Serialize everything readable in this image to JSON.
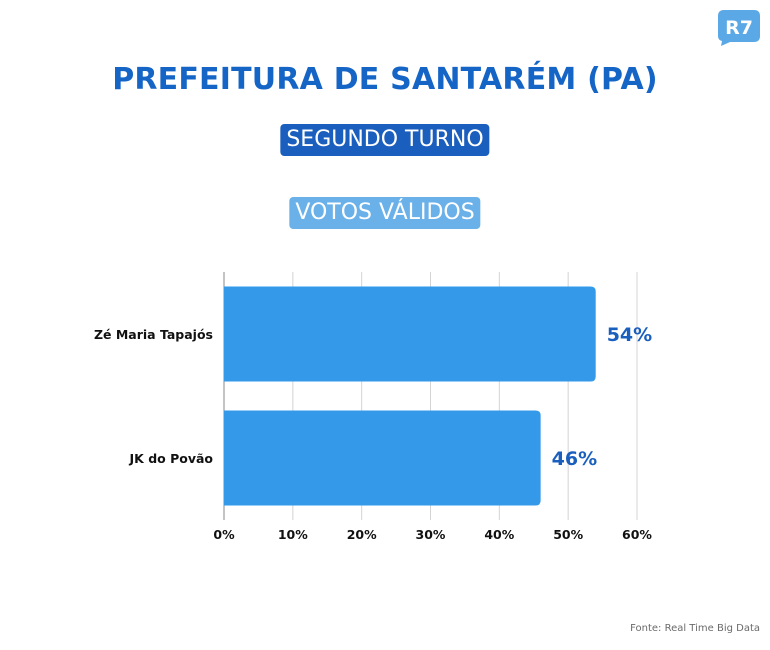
{
  "brand": {
    "logo_text": "R7",
    "logo_color": "#5aa8e6"
  },
  "header": {
    "title": "PREFEITURA DE SANTARÉM (PA)",
    "subtitle_1": "SEGUNDO TURNO",
    "subtitle_2": "VOTOS VÁLIDOS"
  },
  "footer": {
    "source": "Fonte: Real Time Big Data"
  },
  "colors": {
    "title": "#1565c6",
    "pill_dark": "#1b5fbe",
    "pill_light": "#6ab1ea",
    "bar": "#3399e8",
    "value_label": "#1b5fbe"
  },
  "chart_data": {
    "type": "bar",
    "orientation": "horizontal",
    "categories": [
      "Zé Maria Tapajós",
      "JK do Povão"
    ],
    "values": [
      54,
      46
    ],
    "value_labels": [
      "54%",
      "46%"
    ],
    "xlim": [
      0,
      60
    ],
    "x_ticks": [
      0,
      10,
      20,
      30,
      40,
      50,
      60
    ],
    "x_tick_labels": [
      "0%",
      "10%",
      "20%",
      "30%",
      "40%",
      "50%",
      "60%"
    ],
    "grid": true
  }
}
